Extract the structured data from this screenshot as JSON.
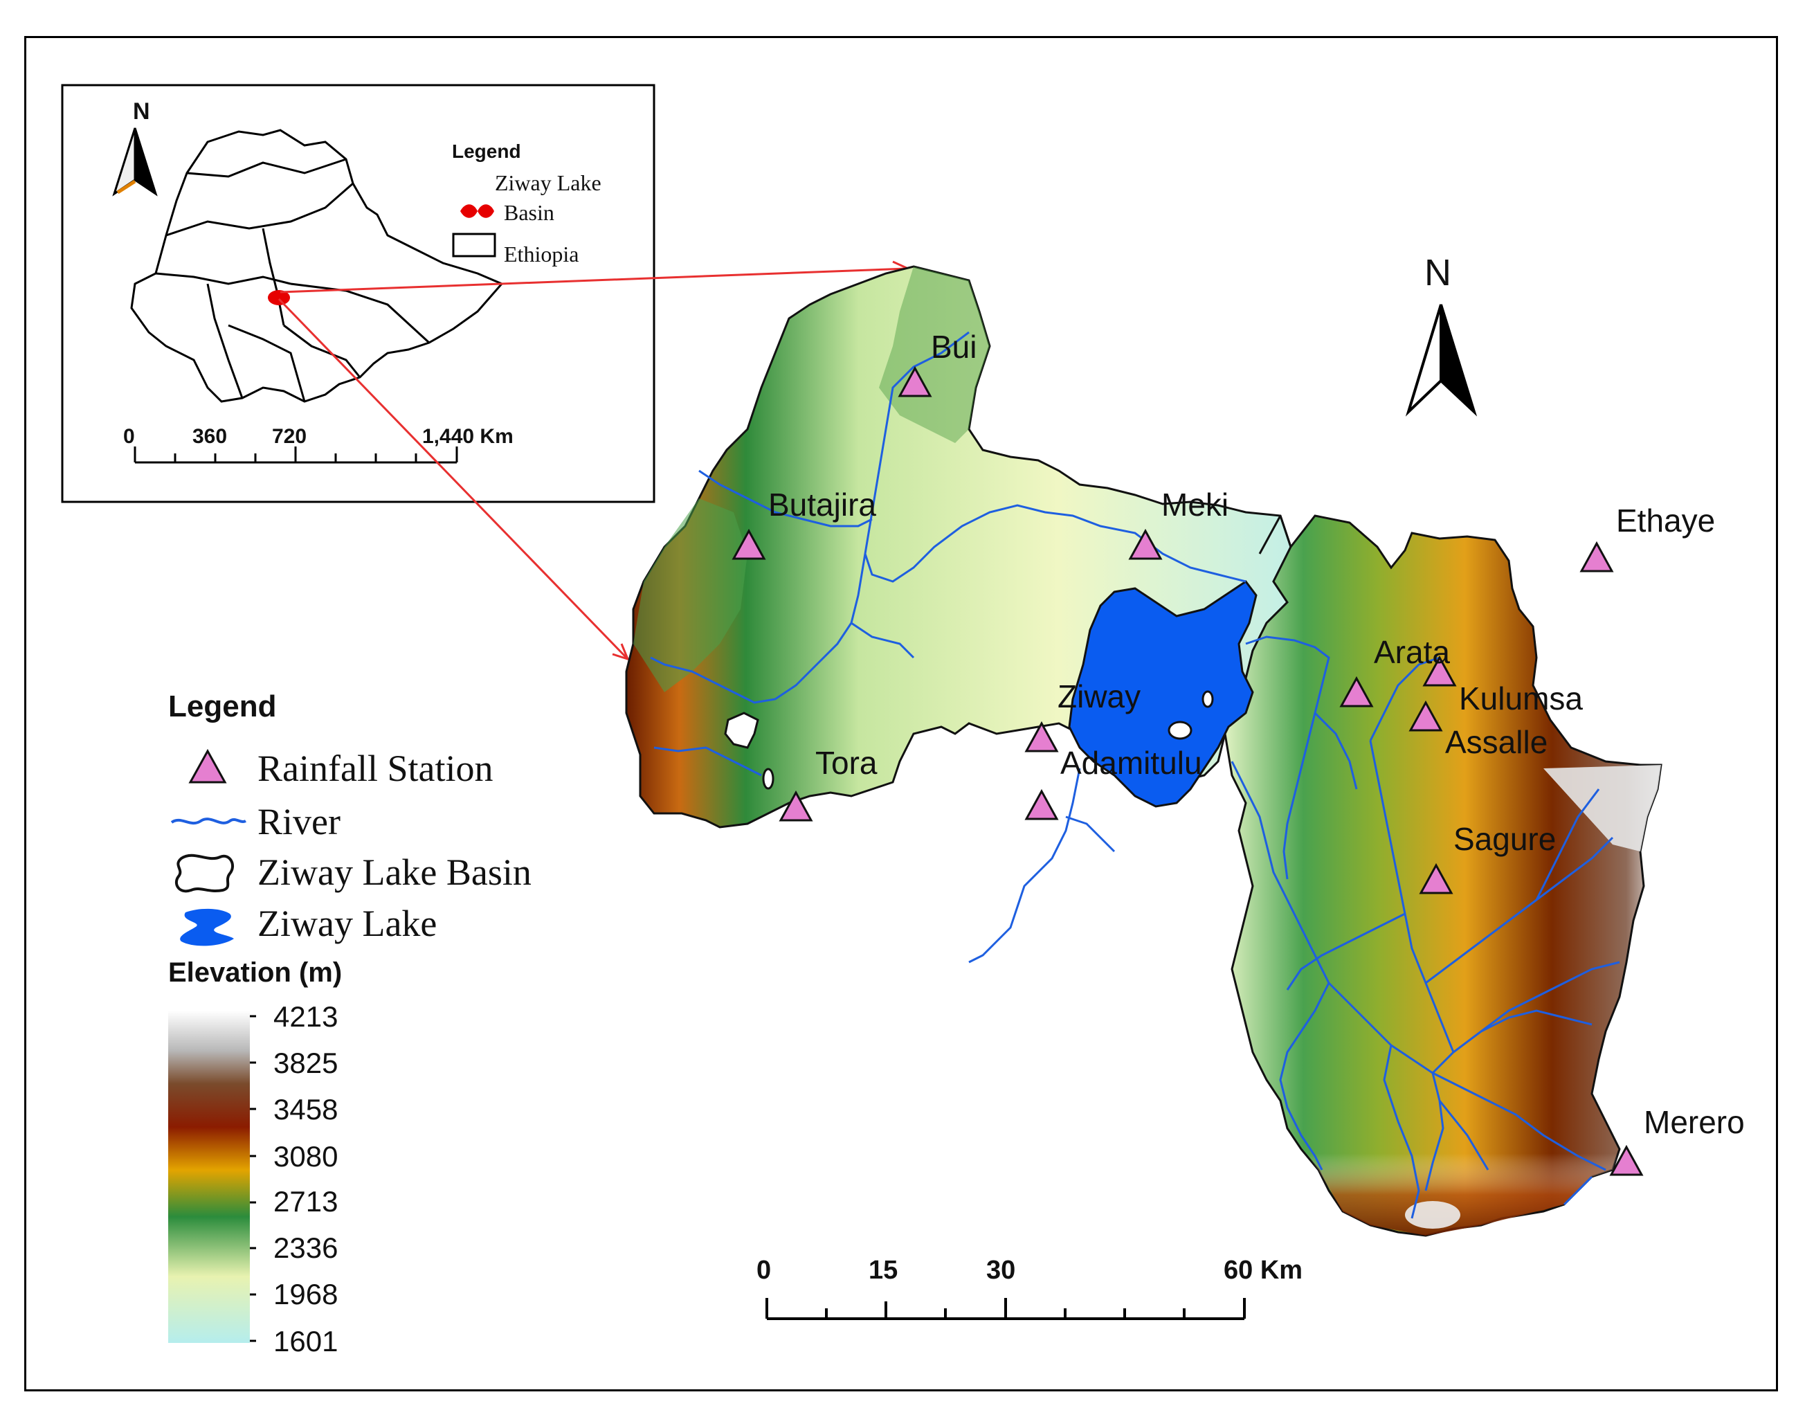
{
  "inset": {
    "north_label": "N",
    "legend_title": "Legend",
    "legend_basin_line1": "Ziway Lake",
    "legend_basin_line2": "Basin",
    "legend_country": "Ethiopia",
    "scale_ticks": [
      "0",
      "360",
      "720",
      "1,440 Km"
    ]
  },
  "main": {
    "north_label": "N",
    "stations": [
      {
        "name": "Bui"
      },
      {
        "name": "Butajira"
      },
      {
        "name": "Meki"
      },
      {
        "name": "Ethaye"
      },
      {
        "name": "Arata"
      },
      {
        "name": "Kulumsa"
      },
      {
        "name": "Assalle"
      },
      {
        "name": "Ziway"
      },
      {
        "name": "Adamitulu"
      },
      {
        "name": "Tora"
      },
      {
        "name": "Sagure"
      },
      {
        "name": "Merero"
      }
    ],
    "scale_ticks": [
      "0",
      "15",
      "30",
      "60 Km"
    ]
  },
  "legend": {
    "title": "Legend",
    "items": [
      {
        "label": "Rainfall Station",
        "icon": "triangle-icon"
      },
      {
        "label": "River",
        "icon": "river-line-icon"
      },
      {
        "label": "Ziway Lake Basin",
        "icon": "basin-outline-icon"
      },
      {
        "label": "Ziway Lake",
        "icon": "lake-icon"
      }
    ],
    "elevation_title": "Elevation (m)",
    "elevation_values": [
      "4213",
      "3825",
      "3458",
      "3080",
      "2713",
      "2336",
      "1968",
      "1601"
    ]
  },
  "colors": {
    "station_fill": "#e57fd0",
    "river": "#1e5fe0",
    "lake": "#0a5cf0",
    "arrow": "#e83030",
    "basin_marker": "#e60000"
  }
}
